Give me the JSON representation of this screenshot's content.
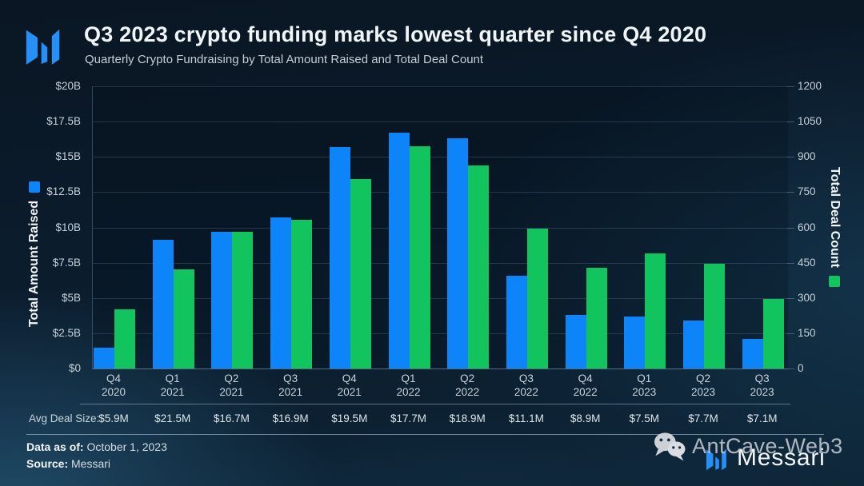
{
  "header": {
    "title": "Q3 2023 crypto funding marks lowest quarter since Q4 2020",
    "subtitle": "Quarterly Crypto Fundraising by Total Amount Raised and Total Deal Count"
  },
  "chart_data": {
    "type": "bar",
    "title": "Q3 2023 crypto funding marks lowest quarter since Q4 2020",
    "subtitle": "Quarterly Crypto Fundraising by Total Amount Raised and Total Deal Count",
    "categories": [
      "Q4 2020",
      "Q1 2021",
      "Q2 2021",
      "Q3 2021",
      "Q4 2021",
      "Q1 2022",
      "Q2 2022",
      "Q3 2022",
      "Q4 2022",
      "Q1 2023",
      "Q2 2023",
      "Q3 2023"
    ],
    "series": [
      {
        "name": "Total Amount Raised",
        "axis": "left",
        "unit": "USD billions",
        "color": "#0d84f8",
        "values": [
          1.5,
          9.1,
          9.7,
          10.7,
          15.7,
          16.7,
          16.3,
          6.6,
          3.8,
          3.7,
          3.4,
          2.1
        ]
      },
      {
        "name": "Total Deal Count",
        "axis": "right",
        "unit": "deals",
        "color": "#11c45e",
        "values": [
          252,
          422,
          580,
          633,
          806,
          945,
          863,
          595,
          428,
          490,
          445,
          297
        ]
      }
    ],
    "left_axis": {
      "label": "Total Amount Raised",
      "min": 0,
      "max": 20,
      "ticks": [
        "$20B",
        "$17.5B",
        "$15B",
        "$12.5B",
        "$10B",
        "$7.5B",
        "$5B",
        "$2.5B",
        "$0"
      ]
    },
    "right_axis": {
      "label": "Total Deal Count",
      "min": 0,
      "max": 1200,
      "ticks": [
        "1200",
        "1050",
        "900",
        "750",
        "600",
        "450",
        "300",
        "150",
        "0"
      ]
    },
    "grid": true,
    "legend_position": "on-axis-titles",
    "avg_deal_size_row": {
      "label": "Avg Deal Size:",
      "values": [
        "$5.9M",
        "$21.5M",
        "$16.7M",
        "$16.9M",
        "$19.5M",
        "$17.7M",
        "$18.9M",
        "$11.1M",
        "$8.9M",
        "$7.5M",
        "$7.7M",
        "$7.1M"
      ]
    }
  },
  "footer": {
    "data_as_of_label": "Data as of:",
    "data_as_of_value": "October 1, 2023",
    "source_label": "Source:",
    "source_value": "Messari"
  },
  "branding": {
    "wordmark": "Messari",
    "watermark_text": "AntCave-Web3"
  },
  "colors": {
    "amount_bar": "#0d84f8",
    "deals_bar": "#11c45e",
    "logo_blue": "#2490f8",
    "background": "#0b1d2e"
  }
}
